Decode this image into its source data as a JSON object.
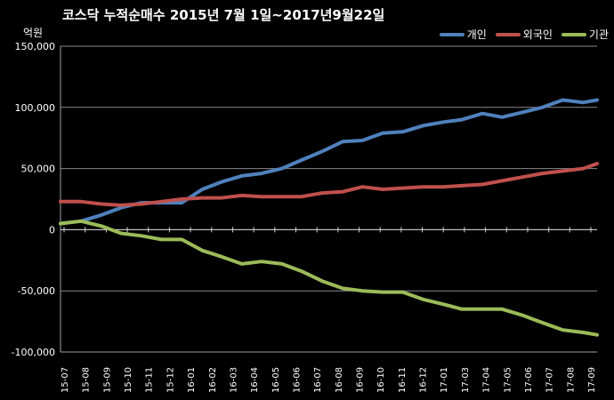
{
  "chart_data": {
    "type": "line",
    "title": "코스닥  누적순매수 2015년 7월 1일~2017년9월22일",
    "y_unit": "억원",
    "ylabel": "",
    "xlabel": "",
    "ylim": [
      -100000,
      150000
    ],
    "y_ticks": [
      150000,
      100000,
      50000,
      0,
      -50000,
      -100000
    ],
    "y_tick_labels": [
      "150,000",
      "100,000",
      "50,000",
      "0",
      "-50,000",
      "-100,000"
    ],
    "x_tick_labels": [
      "15-07",
      "15-08",
      "15-09",
      "15-10",
      "15-11",
      "15-12",
      "16-01",
      "16-02",
      "16-03",
      "16-04",
      "16-05",
      "16-06",
      "16-07",
      "16-08",
      "16-09",
      "16-10",
      "16-11",
      "16-12",
      "17-01",
      "17-03",
      "17-04",
      "17-05",
      "17-06",
      "17-07",
      "17-08",
      "17-09"
    ],
    "x": [
      "2015-07-01",
      "2015-08-01",
      "2015-09-01",
      "2015-10-01",
      "2015-11-01",
      "2015-12-01",
      "2016-01-01",
      "2016-02-01",
      "2016-03-01",
      "2016-04-01",
      "2016-05-01",
      "2016-06-01",
      "2016-07-01",
      "2016-08-01",
      "2016-09-01",
      "2016-10-01",
      "2016-11-01",
      "2016-12-01",
      "2017-01-01",
      "2017-02-01",
      "2017-03-01",
      "2017-04-01",
      "2017-05-01",
      "2017-06-01",
      "2017-07-01",
      "2017-08-01",
      "2017-09-01",
      "2017-09-22"
    ],
    "legend_position": "top-right",
    "grid": {
      "horizontal": true,
      "vertical": false
    },
    "series": [
      {
        "name": "개인",
        "color": "#4f81bd",
        "values": [
          5000,
          7000,
          12000,
          18000,
          22000,
          22000,
          22000,
          33000,
          39000,
          44000,
          46000,
          50000,
          57000,
          64000,
          72000,
          73000,
          79000,
          80000,
          85000,
          88000,
          90000,
          95000,
          92000,
          96000,
          100000,
          106000,
          104000,
          106000
        ]
      },
      {
        "name": "외국인",
        "color": "#c0504d",
        "values": [
          23000,
          23000,
          21000,
          20000,
          21000,
          23000,
          25000,
          26000,
          26000,
          28000,
          27000,
          27000,
          27000,
          30000,
          31000,
          35000,
          33000,
          34000,
          35000,
          35000,
          36000,
          37000,
          40000,
          43000,
          46000,
          48000,
          50000,
          54000
        ]
      },
      {
        "name": "기관",
        "color": "#9bbb59",
        "values": [
          5000,
          7000,
          3000,
          -3000,
          -5000,
          -8000,
          -8000,
          -17000,
          -22000,
          -28000,
          -26000,
          -28000,
          -34000,
          -42000,
          -48000,
          -50000,
          -51000,
          -51000,
          -57000,
          -61000,
          -65000,
          -65000,
          -65000,
          -70000,
          -76000,
          -82000,
          -84000,
          -86000
        ]
      }
    ]
  }
}
